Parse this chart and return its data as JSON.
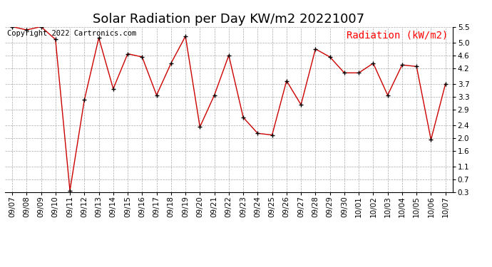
{
  "title": "Solar Radiation per Day KW/m2 20221007",
  "legend_label": "Radiation (kW/m2)",
  "copyright_text": "Copyright 2022 Cartronics.com",
  "dates": [
    "09/07",
    "09/08",
    "09/09",
    "09/10",
    "09/11",
    "09/12",
    "09/13",
    "09/14",
    "09/15",
    "09/16",
    "09/17",
    "09/18",
    "09/19",
    "09/20",
    "09/21",
    "09/22",
    "09/23",
    "09/24",
    "09/25",
    "09/26",
    "09/27",
    "09/28",
    "09/29",
    "09/30",
    "10/01",
    "10/02",
    "10/03",
    "10/04",
    "10/05",
    "10/06",
    "10/07"
  ],
  "values": [
    5.5,
    5.4,
    5.5,
    5.1,
    0.35,
    3.2,
    5.15,
    3.55,
    4.65,
    4.55,
    3.35,
    4.35,
    5.2,
    2.35,
    3.35,
    4.6,
    2.65,
    2.15,
    2.1,
    3.8,
    3.05,
    4.8,
    4.55,
    4.05,
    4.05,
    4.35,
    3.35,
    4.3,
    4.25,
    1.95,
    3.7
  ],
  "line_color": "#cc0000",
  "marker": "+",
  "marker_color": "#000000",
  "grid_color": "#aaaaaa",
  "ylim": [
    0.3,
    5.5
  ],
  "yticks": [
    0.3,
    0.7,
    1.1,
    1.6,
    2.0,
    2.4,
    2.9,
    3.3,
    3.7,
    4.2,
    4.6,
    5.0,
    5.5
  ],
  "background_color": "#ffffff",
  "title_fontsize": 13,
  "legend_fontsize": 10,
  "copyright_fontsize": 7.5,
  "tick_fontsize": 7.5
}
